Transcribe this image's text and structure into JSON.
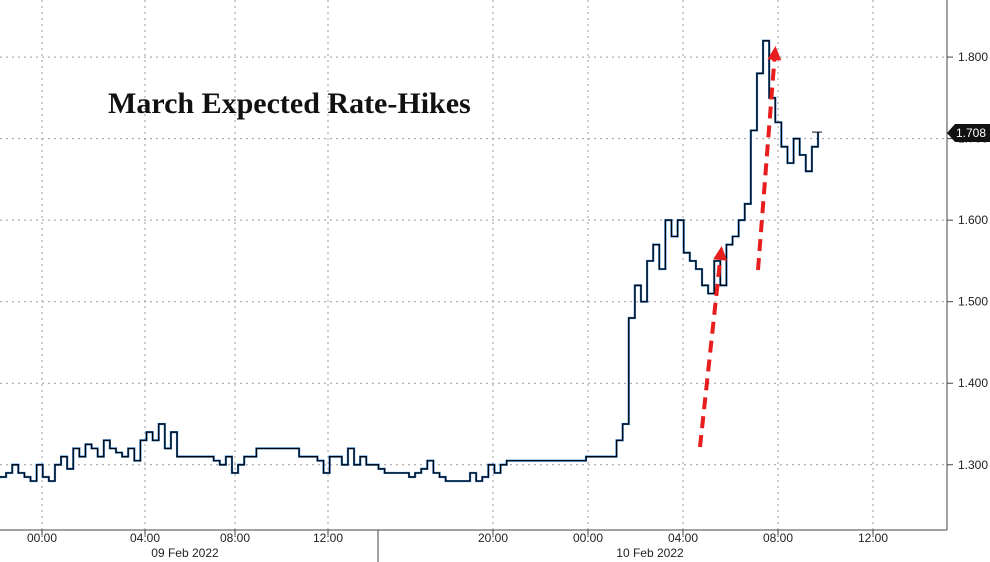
{
  "chart_data": {
    "type": "line",
    "title": "March Expected Rate-Hikes",
    "xlabel": "",
    "ylabel": "",
    "ylim": [
      1.22,
      1.87
    ],
    "y_ticks": [
      "1.300",
      "1.400",
      "1.500",
      "1.600",
      "1.700",
      "1.800"
    ],
    "y_tick_values": [
      1.3,
      1.4,
      1.5,
      1.6,
      1.7,
      1.8
    ],
    "x_ticks": [
      "00:00",
      "04:00",
      "08:00",
      "12:00",
      "20:00",
      "00:00",
      "04:00",
      "08:00",
      "12:00"
    ],
    "date_labels": [
      "09 Feb 2022",
      "10 Feb 2022"
    ],
    "last_value_label": "1.708",
    "last_value": 1.708,
    "grid": true,
    "legend": "none",
    "series": [
      {
        "color": "#000000",
        "values": [
          1.285,
          1.29,
          1.3,
          1.29,
          1.285,
          1.28,
          1.3,
          1.285,
          1.28,
          1.3,
          1.31,
          1.295,
          1.32,
          1.31,
          1.325,
          1.32,
          1.31,
          1.33,
          1.32,
          1.315,
          1.31,
          1.32,
          1.305,
          1.33,
          1.34,
          1.33,
          1.35,
          1.32,
          1.34,
          1.31,
          1.31,
          1.31,
          1.31,
          1.31,
          1.31,
          1.305,
          1.3,
          1.31,
          1.29,
          1.3,
          1.31,
          1.31,
          1.32,
          1.32,
          1.32,
          1.32,
          1.32,
          1.32,
          1.32,
          1.31,
          1.31,
          1.31,
          1.305,
          1.29,
          1.31,
          1.31,
          1.3,
          1.32,
          1.3,
          1.31,
          1.3,
          1.3,
          1.295,
          1.29,
          1.29,
          1.29,
          1.29,
          1.285,
          1.29,
          1.295,
          1.305,
          1.29,
          1.285,
          1.28,
          1.28,
          1.28,
          1.28,
          1.29,
          1.28,
          1.285,
          1.3,
          1.29,
          1.3,
          1.305,
          1.305,
          1.305,
          1.305,
          1.305,
          1.305,
          1.305,
          1.305,
          1.305,
          1.305,
          1.305,
          1.305,
          1.305,
          1.31,
          1.31,
          1.31,
          1.31,
          1.31,
          1.33,
          1.35,
          1.48,
          1.52,
          1.5,
          1.55,
          1.57,
          1.54,
          1.6,
          1.58,
          1.6,
          1.56,
          1.55,
          1.54,
          1.52,
          1.51,
          1.55,
          1.52,
          1.57,
          1.58,
          1.6,
          1.62,
          1.71,
          1.78,
          1.82,
          1.75,
          1.72,
          1.69,
          1.67,
          1.7,
          1.68,
          1.66,
          1.69,
          1.708
        ]
      }
    ]
  },
  "annotations": {
    "arrow_color": "#e81d1d"
  }
}
